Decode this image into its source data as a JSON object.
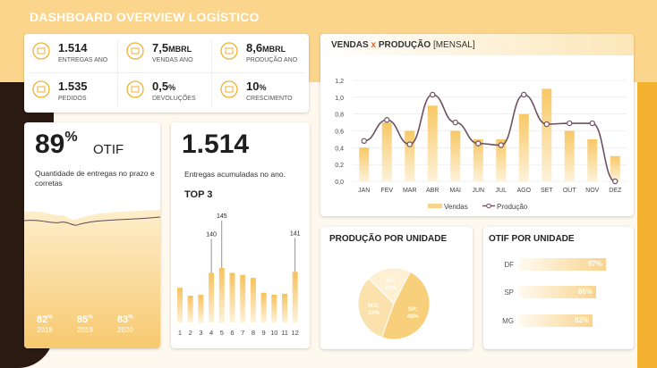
{
  "title": "DASHBOARD OVERVIEW LOGÍSTICO",
  "kpis": [
    {
      "value": "1.514",
      "unit": "",
      "label": "ENTREGAS ANO",
      "icon": "truck-icon"
    },
    {
      "value": "7,5",
      "unit": "MBRL",
      "label": "VENDAS ANO",
      "icon": "money-bag-icon"
    },
    {
      "value": "8,6",
      "unit": "MBRL",
      "label": "PRODUÇÃO ANO",
      "icon": "factory-icon"
    },
    {
      "value": "1.535",
      "unit": "",
      "label": "PEDIDOS",
      "icon": "boxes-icon"
    },
    {
      "value": "0,5",
      "unit": "%",
      "label": "DEVOLUÇÕES",
      "icon": "return-icon"
    },
    {
      "value": "10",
      "unit": "%",
      "label": "CRESCIMENTO",
      "icon": "growth-chart-icon"
    }
  ],
  "otif_card": {
    "value": "89",
    "unit": "%",
    "label": "OTIF",
    "desc": "Quantidade de entregas no prazo e corretas",
    "years": [
      {
        "value": "82",
        "unit": "%",
        "year": "2018"
      },
      {
        "value": "85",
        "unit": "%",
        "year": "2019"
      },
      {
        "value": "83",
        "unit": "%",
        "year": "2020"
      }
    ]
  },
  "deliveries_card": {
    "value": "1.514",
    "desc": "Entregas acumuladas no ano.",
    "top3": "TOP 3"
  },
  "chart_vendas_title": "VENDAS",
  "chart_vendas_x": "x",
  "chart_vendas_bold": "PRODUÇÃO",
  "chart_vendas_sub": "[MENSAL]",
  "section_producao": "PRODUÇÃO POR UNIDADE",
  "section_otif": "OTIF POR UNIDADE",
  "colors": {
    "accent": "#f2b230",
    "bar": "#f9d48e",
    "line": "#6e5060",
    "dark": "#2b1a12"
  },
  "chart_data": [
    {
      "type": "bar",
      "categories": [
        "1",
        "2",
        "3",
        "4",
        "5",
        "6",
        "7",
        "8",
        "9",
        "10",
        "11",
        "12"
      ],
      "values": [
        125,
        117,
        118,
        140,
        145,
        140,
        138,
        135,
        120,
        118,
        119,
        141
      ],
      "labels_shown": {
        "4": "140",
        "5": "145",
        "12": "141"
      },
      "title": "TOP 3",
      "ylim": [
        0,
        160
      ]
    },
    {
      "type": "bar+line",
      "categories": [
        "JAN",
        "FEV",
        "MAR",
        "ABR",
        "MAI",
        "JUN",
        "JUL",
        "AGO",
        "SET",
        "OUT",
        "NOV",
        "DEZ"
      ],
      "series": [
        {
          "name": "Vendas",
          "type": "bar",
          "values": [
            0.4,
            0.7,
            0.6,
            0.9,
            0.6,
            0.5,
            0.5,
            0.8,
            1.1,
            0.6,
            0.5,
            0.3
          ]
        },
        {
          "name": "Produção",
          "type": "line",
          "values": [
            0.48,
            0.73,
            0.44,
            1.03,
            0.7,
            0.45,
            0.43,
            1.03,
            0.68,
            0.69,
            0.69,
            0.0
          ]
        }
      ],
      "yticks": [
        "0,0",
        "0,2",
        "0,4",
        "0,6",
        "0,8",
        "1,0",
        "1,2"
      ],
      "ylim": [
        0,
        1.2
      ],
      "legend": "bottom"
    },
    {
      "type": "pie",
      "slices": [
        {
          "label": "SP",
          "value": 48,
          "display": "SP;\n48%"
        },
        {
          "label": "MG",
          "value": 32,
          "display": "MG;\n32%"
        },
        {
          "label": "RJ",
          "value": 20,
          "display": "RJ;\n20%"
        }
      ]
    },
    {
      "type": "bar",
      "orientation": "horizontal",
      "categories": [
        "DF",
        "SP",
        "MG"
      ],
      "values": [
        97,
        86,
        82
      ],
      "labels": [
        "97%",
        "86%",
        "82%"
      ],
      "xlim": [
        0,
        100
      ]
    }
  ]
}
